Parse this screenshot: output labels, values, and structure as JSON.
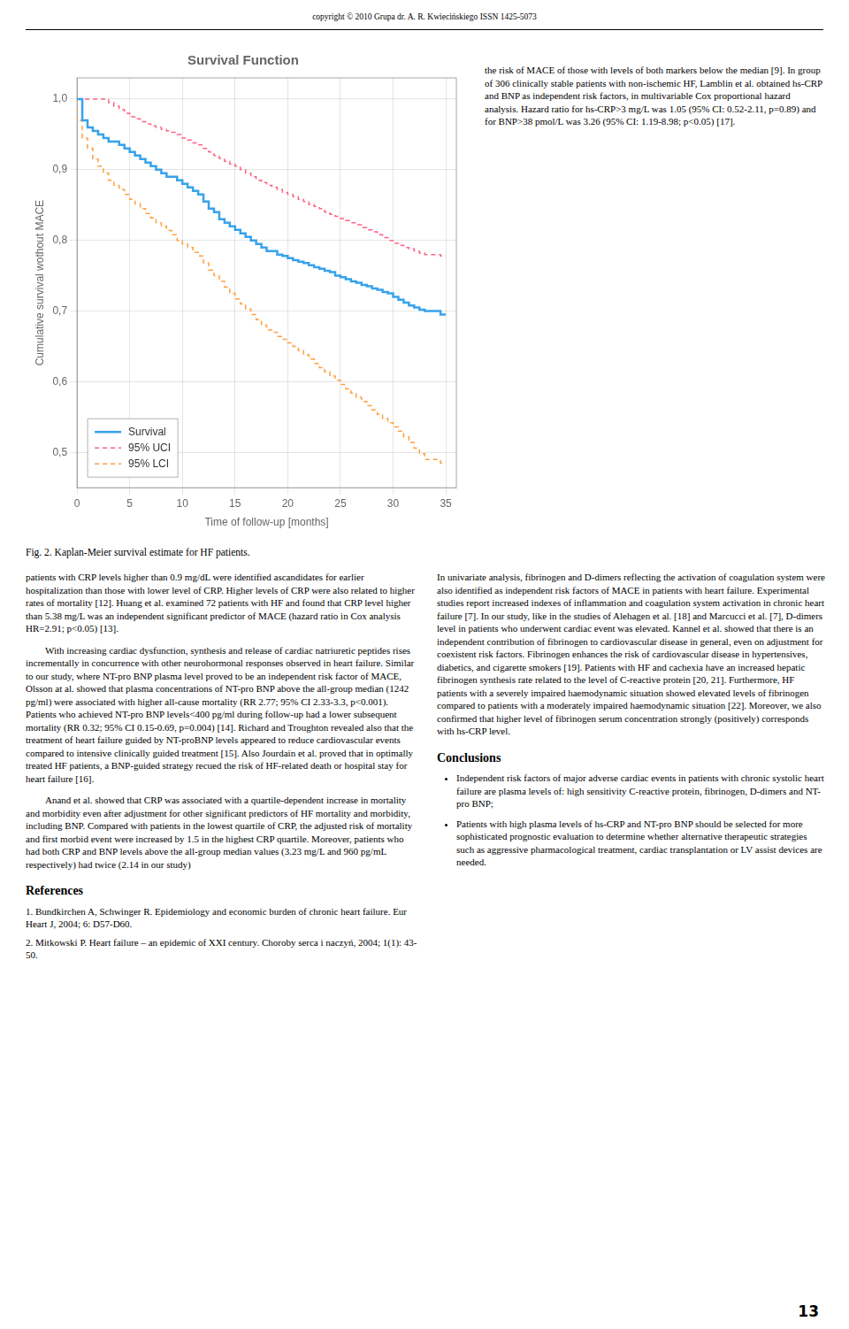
{
  "chart_data": {
    "type": "step",
    "title": "Survival Function",
    "xlabel": "Time of follow-up [months]",
    "ylabel": "Cumulative survival wothout MACE",
    "xlim": [
      0,
      36
    ],
    "ylim": [
      0.45,
      1.03
    ],
    "xticks": [
      0,
      5,
      10,
      15,
      20,
      25,
      30,
      35
    ],
    "yticks": [
      {
        "value": 0.5,
        "label": "0,5"
      },
      {
        "value": 0.6,
        "label": "0,6"
      },
      {
        "value": 0.7,
        "label": "0,7"
      },
      {
        "value": 0.8,
        "label": "0,8"
      },
      {
        "value": 0.9,
        "label": "0,9"
      },
      {
        "value": 1.0,
        "label": "1,0"
      }
    ],
    "grid": true,
    "legend": "lower left",
    "x": [
      0,
      0.5,
      1.0,
      1.5,
      2.0,
      2.5,
      3.0,
      3.5,
      4.0,
      4.5,
      5.0,
      5.5,
      6.0,
      6.5,
      7.0,
      7.5,
      8.0,
      8.5,
      9.0,
      9.5,
      10.0,
      10.5,
      11.0,
      11.5,
      12.0,
      12.5,
      13.0,
      13.5,
      14.0,
      14.5,
      15.0,
      15.5,
      16.0,
      16.5,
      17.0,
      17.5,
      18.0,
      18.5,
      19.0,
      19.5,
      20.0,
      20.5,
      21.0,
      21.5,
      22.0,
      22.5,
      23.0,
      23.5,
      24.0,
      24.5,
      25.0,
      25.5,
      26.0,
      26.5,
      27.0,
      27.5,
      28.0,
      28.5,
      29.0,
      29.5,
      30.0,
      30.5,
      31.0,
      31.5,
      32.0,
      32.5,
      33.0,
      33.5,
      34.0,
      34.5,
      35.0
    ],
    "series": [
      {
        "name": "Survival",
        "line_style": "solid",
        "values": [
          1.0,
          1.0,
          0.97,
          0.96,
          0.955,
          0.95,
          0.945,
          0.94,
          0.94,
          0.935,
          0.93,
          0.925,
          0.92,
          0.915,
          0.91,
          0.905,
          0.9,
          0.895,
          0.89,
          0.89,
          0.885,
          0.88,
          0.875,
          0.87,
          0.865,
          0.855,
          0.845,
          0.84,
          0.83,
          0.825,
          0.82,
          0.815,
          0.81,
          0.805,
          0.8,
          0.795,
          0.79,
          0.785,
          0.785,
          0.78,
          0.778,
          0.775,
          0.772,
          0.77,
          0.768,
          0.765,
          0.762,
          0.76,
          0.757,
          0.755,
          0.75,
          0.748,
          0.745,
          0.742,
          0.74,
          0.737,
          0.735,
          0.732,
          0.73,
          0.727,
          0.725,
          0.72,
          0.716,
          0.712,
          0.708,
          0.705,
          0.702,
          0.7,
          0.7,
          0.7,
          0.695
        ]
      },
      {
        "name": "95% UCI",
        "line_style": "dashed",
        "values": [
          1.0,
          1.0,
          1.0,
          1.0,
          1.0,
          1.0,
          1.0,
          0.995,
          0.99,
          0.985,
          0.98,
          0.975,
          0.972,
          0.968,
          0.965,
          0.962,
          0.96,
          0.957,
          0.955,
          0.953,
          0.95,
          0.945,
          0.942,
          0.938,
          0.935,
          0.93,
          0.925,
          0.92,
          0.916,
          0.912,
          0.908,
          0.905,
          0.9,
          0.895,
          0.89,
          0.885,
          0.882,
          0.878,
          0.875,
          0.872,
          0.868,
          0.865,
          0.862,
          0.858,
          0.855,
          0.851,
          0.848,
          0.845,
          0.84,
          0.837,
          0.834,
          0.831,
          0.828,
          0.825,
          0.822,
          0.818,
          0.815,
          0.812,
          0.808,
          0.804,
          0.8,
          0.796,
          0.793,
          0.79,
          0.788,
          0.785,
          0.782,
          0.78,
          0.78,
          0.78,
          0.778
        ]
      },
      {
        "name": "95% LCI",
        "line_style": "dashed",
        "values": [
          1.0,
          0.97,
          0.945,
          0.93,
          0.915,
          0.905,
          0.895,
          0.885,
          0.878,
          0.872,
          0.865,
          0.858,
          0.852,
          0.845,
          0.838,
          0.832,
          0.825,
          0.82,
          0.814,
          0.808,
          0.8,
          0.795,
          0.79,
          0.783,
          0.778,
          0.768,
          0.758,
          0.75,
          0.742,
          0.734,
          0.725,
          0.717,
          0.71,
          0.703,
          0.695,
          0.688,
          0.68,
          0.673,
          0.67,
          0.664,
          0.66,
          0.655,
          0.65,
          0.644,
          0.638,
          0.632,
          0.626,
          0.62,
          0.614,
          0.608,
          0.602,
          0.596,
          0.59,
          0.584,
          0.578,
          0.572,
          0.566,
          0.56,
          0.554,
          0.548,
          0.542,
          0.536,
          0.53,
          0.522,
          0.514,
          0.506,
          0.498,
          0.49,
          0.49,
          0.49,
          0.485
        ]
      }
    ]
  },
  "page_text": {
    "copyright": "copyright © 2010 Grupa dr. A. R. Kwiecińskiego ISSN 1425-5073",
    "caption": "Fig. 2. Kaplan-Meier survival estimate for HF patients.",
    "page_number": "13",
    "column1": [
      "patients with CRP levels higher than 0.9 mg/dL were identified ascandidates for earlier hospitalization than those with lower level of CRP. Higher levels of CRP were also related to higher rates of mortality [12]. Huang et al. examined 72 patients with HF and found that CRP level higher than 5.38 mg/L was an independent significant predictor of MACE (hazard ratio in Cox analysis HR=2.91; p<0.05) [13].",
      "With increasing cardiac dysfunction, synthesis and release of cardiac natriuretic peptides rises incrementally in concurrence with other neurohormonal responses observed in heart failure. Similar to our study, where NT-pro BNP plasma level proved to be an independent risk factor of MACE, Olsson at al. showed that plasma concentrations of NT-pro BNP above the all-group median (1242 pg/ml) were associated with higher all-cause mortality (RR 2.77; 95% CI 2.33-3.3, p<0.001). Patients who achieved NT-pro BNP levels<400 pg/ml during follow-up had a lower subsequent mortality (RR 0.32; 95% CI 0.15-0.69, p=0.004) [14]. Richard and Troughton revealed also that the treatment of heart failure guided by NT-proBNP levels appeared to reduce cardiovascular events compared to intensive clinically guided treatment [15]. Also Jourdain et al. proved that in optimally treated HF patients, a BNP-guided strategy recued the risk of HF-related death or hospital stay for heart failure [16].",
      "Anand et al. showed that CRP was associated with a quartile-dependent increase in mortality and morbidity even after adjustment for other significant predictors of HF mortality and morbidity, including BNP. Compared with patients in the lowest quartile of CRP, the adjusted risk of mortality and first morbid event were increased by 1.5 in the highest CRP quartile. Moreover, patients who had both CRP and BNP levels above the all-group median values (3.23 mg/L and 960 pg/mL respectively) had twice (2.14 in our study)"
    ],
    "column2_top": "the risk of MACE of those with levels of both markers below the median [9]. In group of 306 clinically stable patients with non-ischemic HF, Lamblin et al. obtained hs-CRP and BNP as independent risk factors, in multivariable Cox proportional hazard analysis. Hazard ratio for hs-CRP>3 mg/L was 1.05 (95% CI: 0.52-2.11, p=0.89) and for BNP>38 pmol/L was 3.26 (95% CI: 1.19-8.98; p<0.05) [17].",
    "column2_main": "In univariate analysis, fibrinogen and D-dimers reflecting the activation of coagulation system were also identified as independent risk factors of MACE in patients with heart failure. Experimental studies report increased indexes of inflammation and coagulation system activation in chronic heart failure [7]. In our study, like in the studies of Alehagen et al. [18] and Marcucci et al. [7], D-dimers level in patients who underwent cardiac event was elevated. Kannel et al. showed that there is an independent contribution of fibrinogen to cardiovascular disease in general, even on adjustment for coexistent risk factors. Fibrinogen enhances the risk of cardiovascular disease in hypertensives, diabetics, and cigarette smokers [19]. Patients with HF and cachexia have an increased hepatic fibrinogen synthesis rate related to the level of C-reactive protein [20, 21]. Furthermore, HF patients with a severely impaired haemodynamic situation showed elevated levels of fibrinogen compared to patients with a moderately impaired haemodynamic situation [22]. Moreover, we also confirmed that higher level of fibrinogen serum concentration strongly (positively) corresponds with hs-CRP level.",
    "conclusions_title": "Conclusions",
    "conclusions": [
      "Independent risk factors of major adverse cardiac events in patients with chronic systolic heart failure are plasma levels of: high sensitivity C-reactive protein, fibrinogen, D-dimers and NT-pro BNP;",
      "Patients with high plasma levels of hs-CRP and NT-pro BNP should be selected for more sophisticated prognostic evaluation to determine whether alternative therapeutic strategies such as aggressive pharmacological treatment, cardiac transplantation or LV assist devices are needed."
    ],
    "references_title": "References",
    "references": [
      "1.  Bundkirchen A, Schwinger R. Epidemiology and economic burden of chronic heart failure. Eur Heart J, 2004; 6: D57-D60.",
      "2.  Mitkowski P. Heart failure – an epidemic of XXI century. Choroby serca i naczyń, 2004; 1(1): 43-50."
    ]
  }
}
